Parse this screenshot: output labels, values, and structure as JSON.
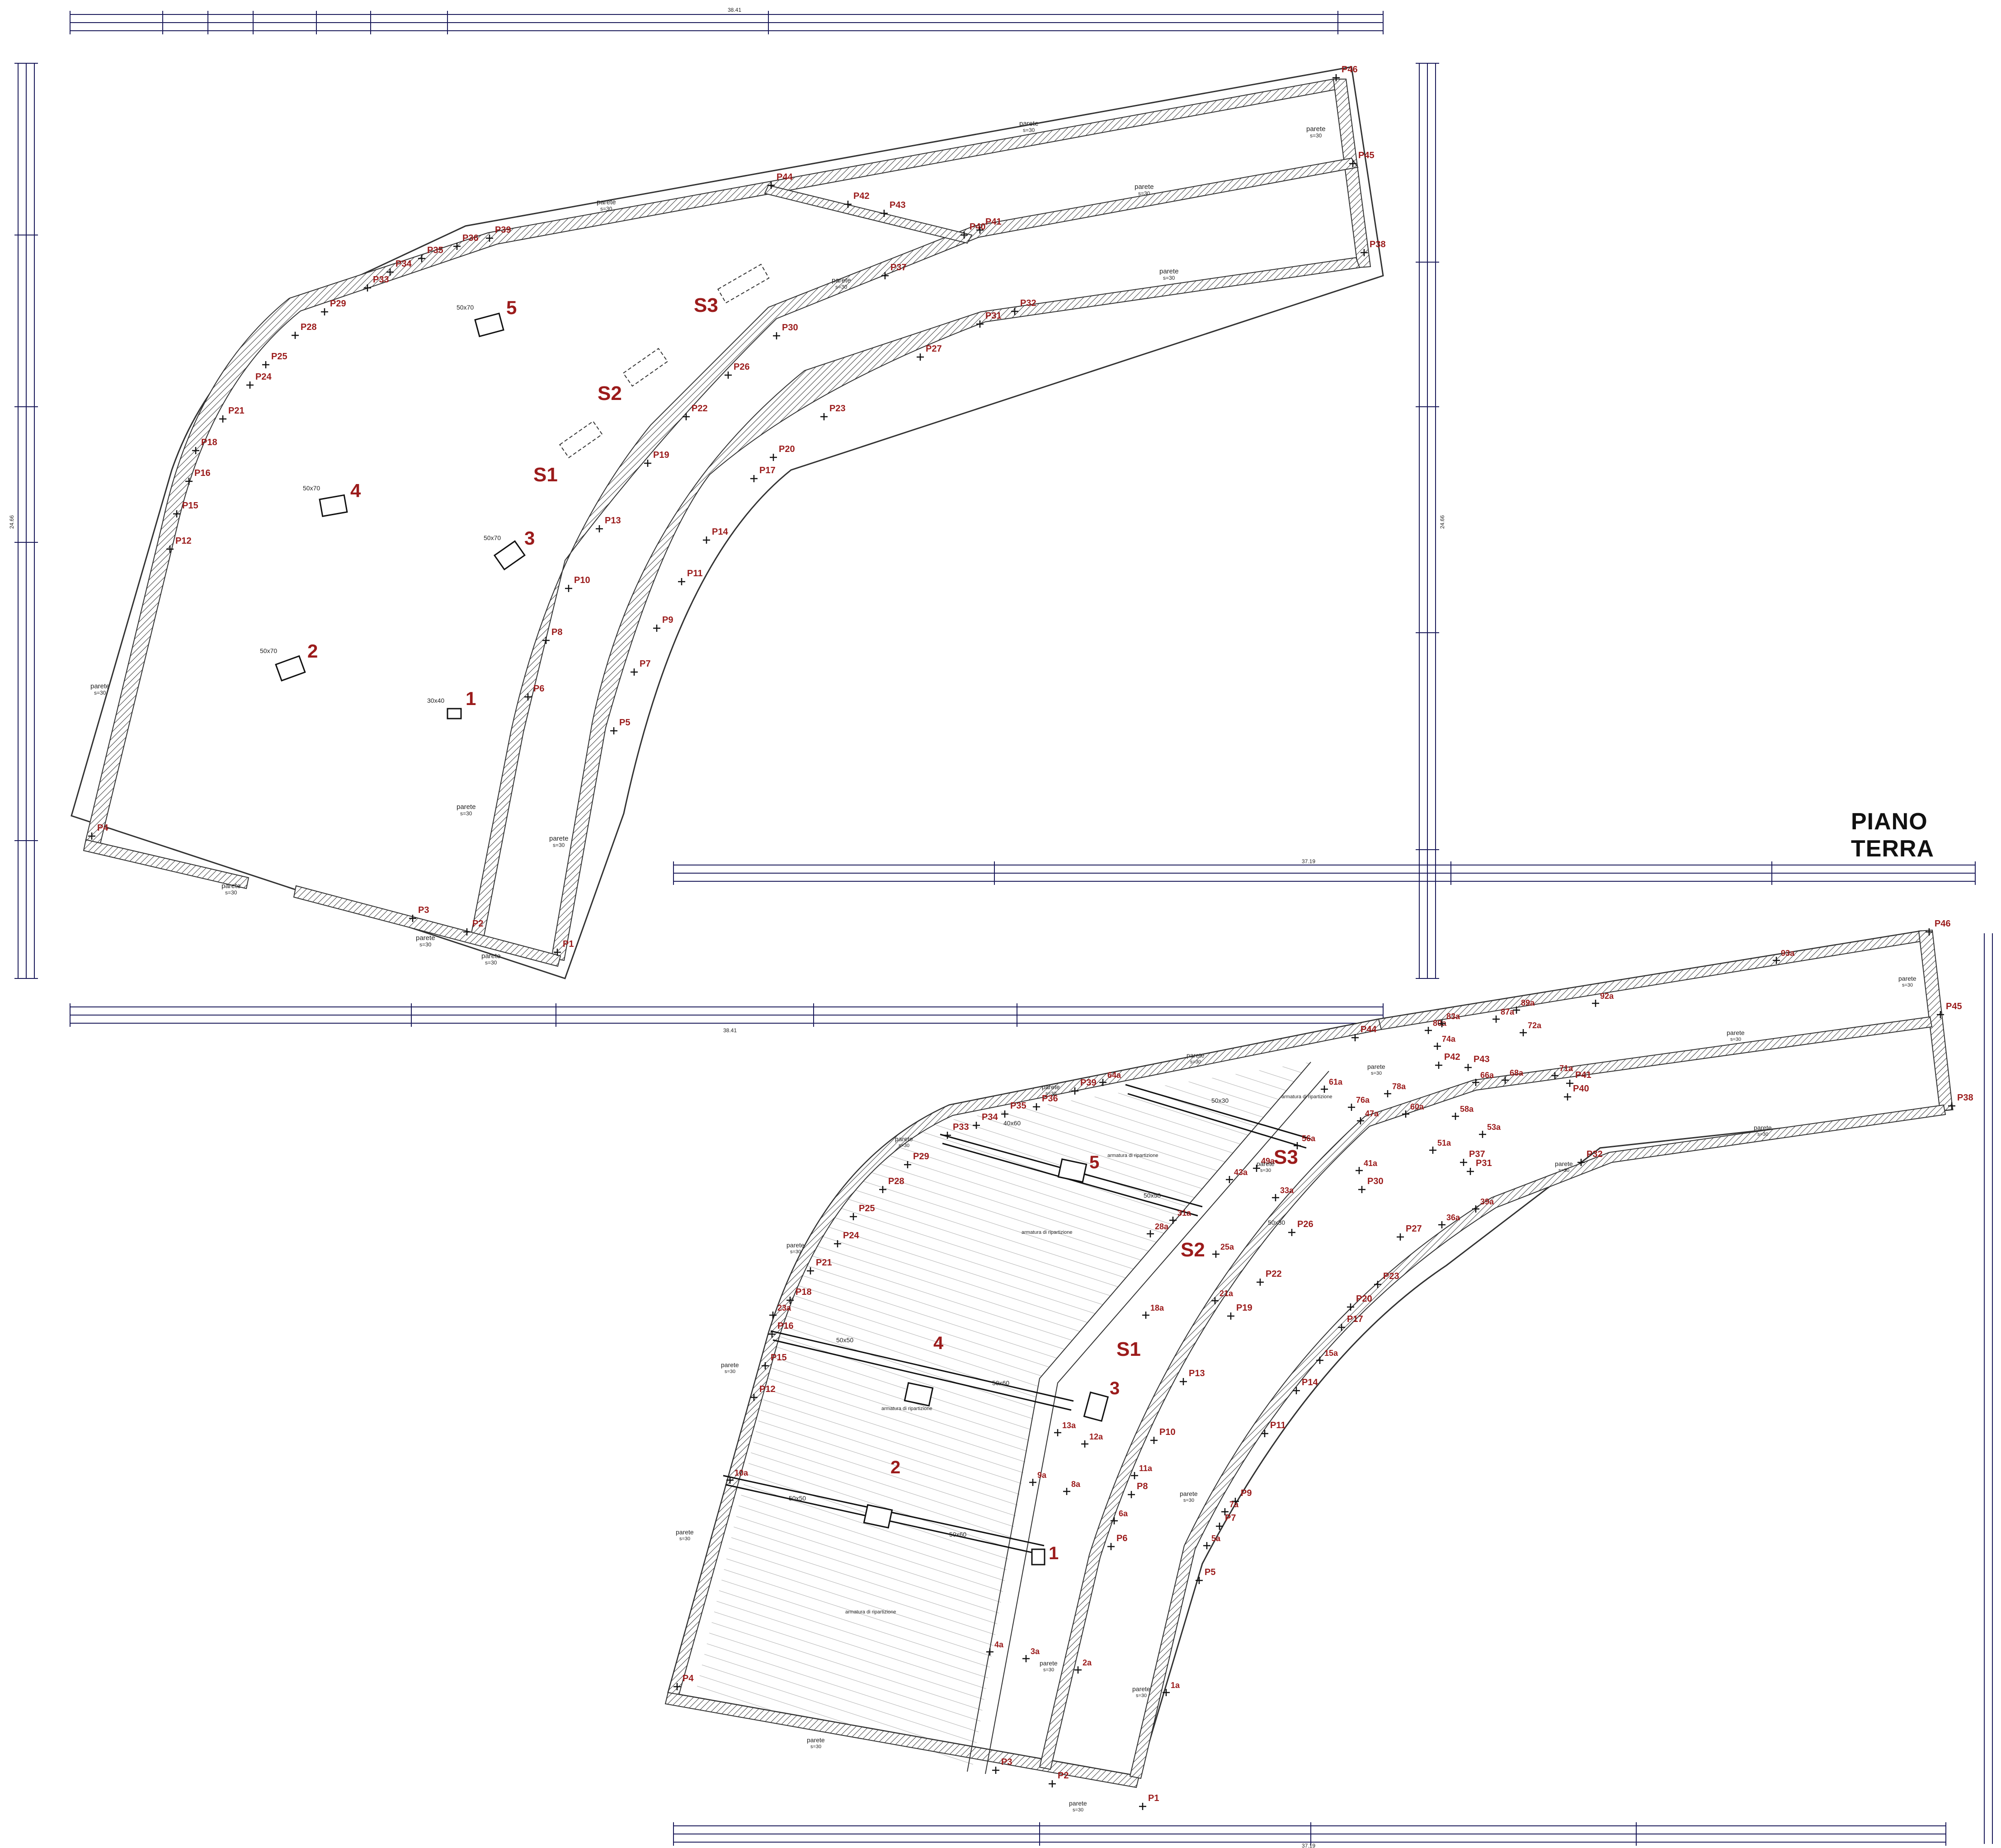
{
  "title": "PIANO TERRA",
  "wall_label": "parete",
  "wall_thickness": "s=30",
  "overall_dimensions": {
    "upper_width": "38.41",
    "upper_height": "24.66",
    "lower_width": "37.19"
  },
  "upper_plan": {
    "piers": [
      "P1",
      "P2",
      "P3",
      "P4",
      "P5",
      "P6",
      "P7",
      "P8",
      "P9",
      "P10",
      "P11",
      "P12",
      "P13",
      "P14",
      "P15",
      "P16",
      "P17",
      "P18",
      "P19",
      "P20",
      "P21",
      "P22",
      "P23",
      "P24",
      "P25",
      "P26",
      "P27",
      "P28",
      "P29",
      "P30",
      "P31",
      "P32",
      "P33",
      "P34",
      "P35",
      "P36",
      "P37",
      "P38",
      "P39",
      "P40",
      "P41",
      "P42",
      "P43",
      "P44",
      "P45",
      "P46"
    ],
    "columns": [
      {
        "id": "1",
        "section": "30x40"
      },
      {
        "id": "2",
        "section": "50x70"
      },
      {
        "id": "3",
        "section": "50x70"
      },
      {
        "id": "4",
        "section": "50x70"
      },
      {
        "id": "5",
        "section": "50x70"
      }
    ],
    "stairs": [
      "S1",
      "S2",
      "S3"
    ]
  },
  "lower_plan": {
    "piers": [
      "P1",
      "P2",
      "P3",
      "P4",
      "P5",
      "P6",
      "P7",
      "P8",
      "P9",
      "P10",
      "P11",
      "P12",
      "P13",
      "P14",
      "P15",
      "P16",
      "P17",
      "P18",
      "P19",
      "P20",
      "P21",
      "P22",
      "P23",
      "P24",
      "P25",
      "P26",
      "P27",
      "P28",
      "P29",
      "P30",
      "P31",
      "P32",
      "P33",
      "P34",
      "P35",
      "P36",
      "P37",
      "P38",
      "P39",
      "P40",
      "P41",
      "P42",
      "P43",
      "P44",
      "P45",
      "P46"
    ],
    "secondary_piers": [
      "1a",
      "2a",
      "3a",
      "4a",
      "5a",
      "6a",
      "7a",
      "8a",
      "9a",
      "10a",
      "11a",
      "12a",
      "13a",
      "15a",
      "18a",
      "21a",
      "23a",
      "25a",
      "28a",
      "31a",
      "33a",
      "36a",
      "39a",
      "41a",
      "43a",
      "47a",
      "49a",
      "51a",
      "53a",
      "56a",
      "58a",
      "60a",
      "61a",
      "64a",
      "66a",
      "68a",
      "71a",
      "72a",
      "74a",
      "76a",
      "78a",
      "80a",
      "83a",
      "87a",
      "89a",
      "92a",
      "93a"
    ],
    "columns": [
      "1",
      "2",
      "3",
      "4",
      "5"
    ],
    "stairs": [
      "S1",
      "S2",
      "S3"
    ],
    "beams": [
      "50x50",
      "50x60",
      "50x50",
      "50x60",
      "40x60",
      "50x50",
      "50x30",
      "50x30"
    ],
    "slab_note": "armatura di ripartizione"
  }
}
